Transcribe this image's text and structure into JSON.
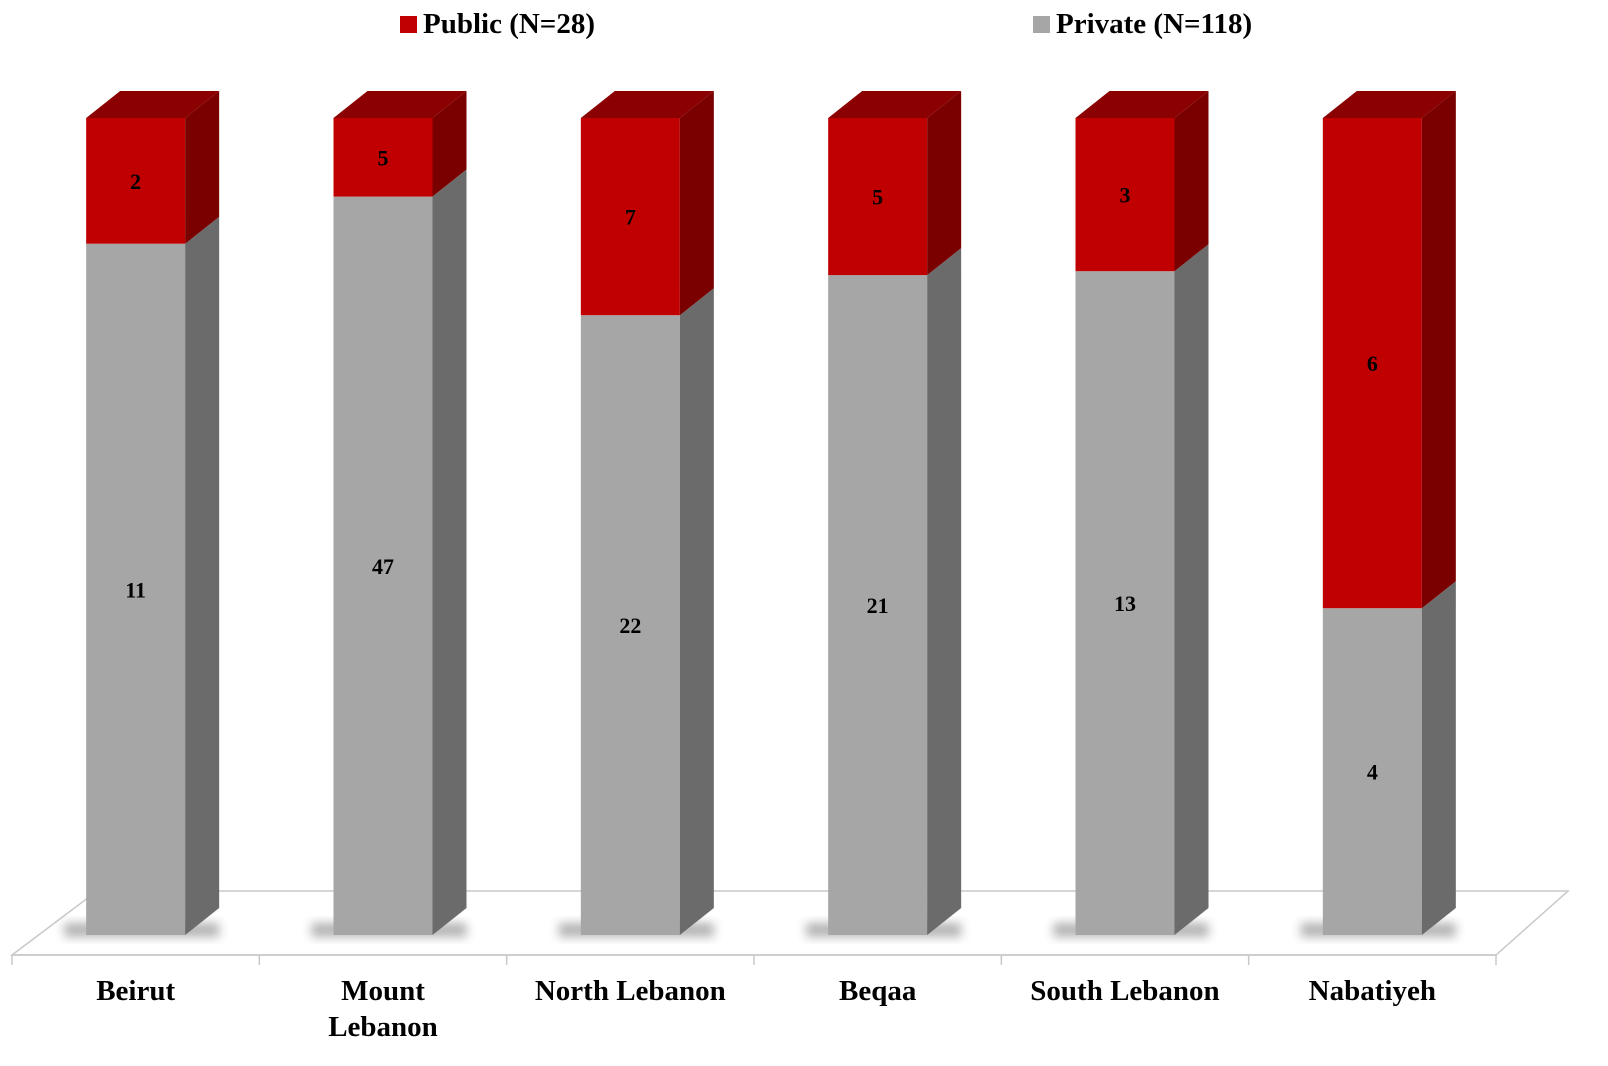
{
  "chart_data": {
    "type": "bar",
    "stacked": true,
    "percent_stacked": true,
    "three_d": true,
    "categories": [
      "Beirut",
      "Mount Lebanon",
      "North Lebanon",
      "Beqaa",
      "South Lebanon",
      "Nabatiyeh"
    ],
    "category_lines": [
      [
        "Beirut"
      ],
      [
        "Mount",
        "Lebanon"
      ],
      [
        "North Lebanon"
      ],
      [
        "Beqaa"
      ],
      [
        "South Lebanon"
      ],
      [
        "Nabatiyeh"
      ]
    ],
    "series": [
      {
        "name": "Private (N=118)",
        "values": [
          11,
          47,
          22,
          21,
          13,
          4
        ],
        "color": "#a6a6a6",
        "side_color": "#6b6b6b"
      },
      {
        "name": "Public (N=28)",
        "values": [
          2,
          5,
          7,
          5,
          3,
          6
        ],
        "color": "#c00000",
        "side_color": "#7a0000",
        "top_color": "#8b0000"
      }
    ],
    "legend": {
      "position": "top",
      "items": [
        "Public (N=28)",
        "Private (N=118)"
      ]
    },
    "grid": false,
    "ylim": [
      0,
      100
    ]
  }
}
